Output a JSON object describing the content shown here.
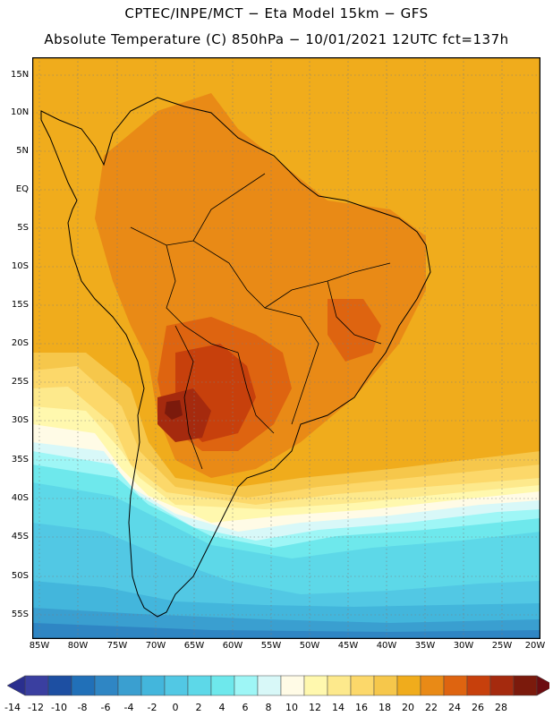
{
  "header": {
    "line1": "CPTEC/INPE/MCT −  Eta Model 15km − GFS",
    "line2": "Absolute Temperature (C) 850hPa − 10/01/2021 12UTC fct=137h"
  },
  "map": {
    "lat_labels": [
      "15N",
      "10N",
      "5N",
      "EQ",
      "5S",
      "10S",
      "15S",
      "20S",
      "25S",
      "30S",
      "35S",
      "40S",
      "45S",
      "50S",
      "55S"
    ],
    "lon_labels": [
      "85W",
      "80W",
      "75W",
      "70W",
      "65W",
      "60W",
      "55W",
      "50W",
      "45W",
      "40W",
      "35W",
      "30W",
      "25W",
      "20W"
    ],
    "ocean_color": "#f0ac1c",
    "frame_color": "#000000"
  },
  "colorbar": {
    "labels": [
      "-14",
      "-12",
      "-10",
      "-8",
      "-6",
      "-4",
      "-2",
      "0",
      "2",
      "4",
      "6",
      "8",
      "10",
      "12",
      "14",
      "16",
      "18",
      "20",
      "22",
      "24",
      "26",
      "28"
    ],
    "colors": [
      "#3a3fa0",
      "#1d4fa2",
      "#2170b8",
      "#2f86c4",
      "#3a9fd0",
      "#43b6dc",
      "#52c8e4",
      "#5dd8e8",
      "#6ee8ec",
      "#9ef6f6",
      "#d8f8f8",
      "#fffbe6",
      "#fff8ae",
      "#fde98c",
      "#fcd86a",
      "#f6c74b",
      "#f0ac1c",
      "#e98a16",
      "#de6410",
      "#c7400c",
      "#a52a0e",
      "#7b1a0c"
    ],
    "low_arrow_color": "#2a2f8e",
    "high_arrow_color": "#6c0c10"
  }
}
